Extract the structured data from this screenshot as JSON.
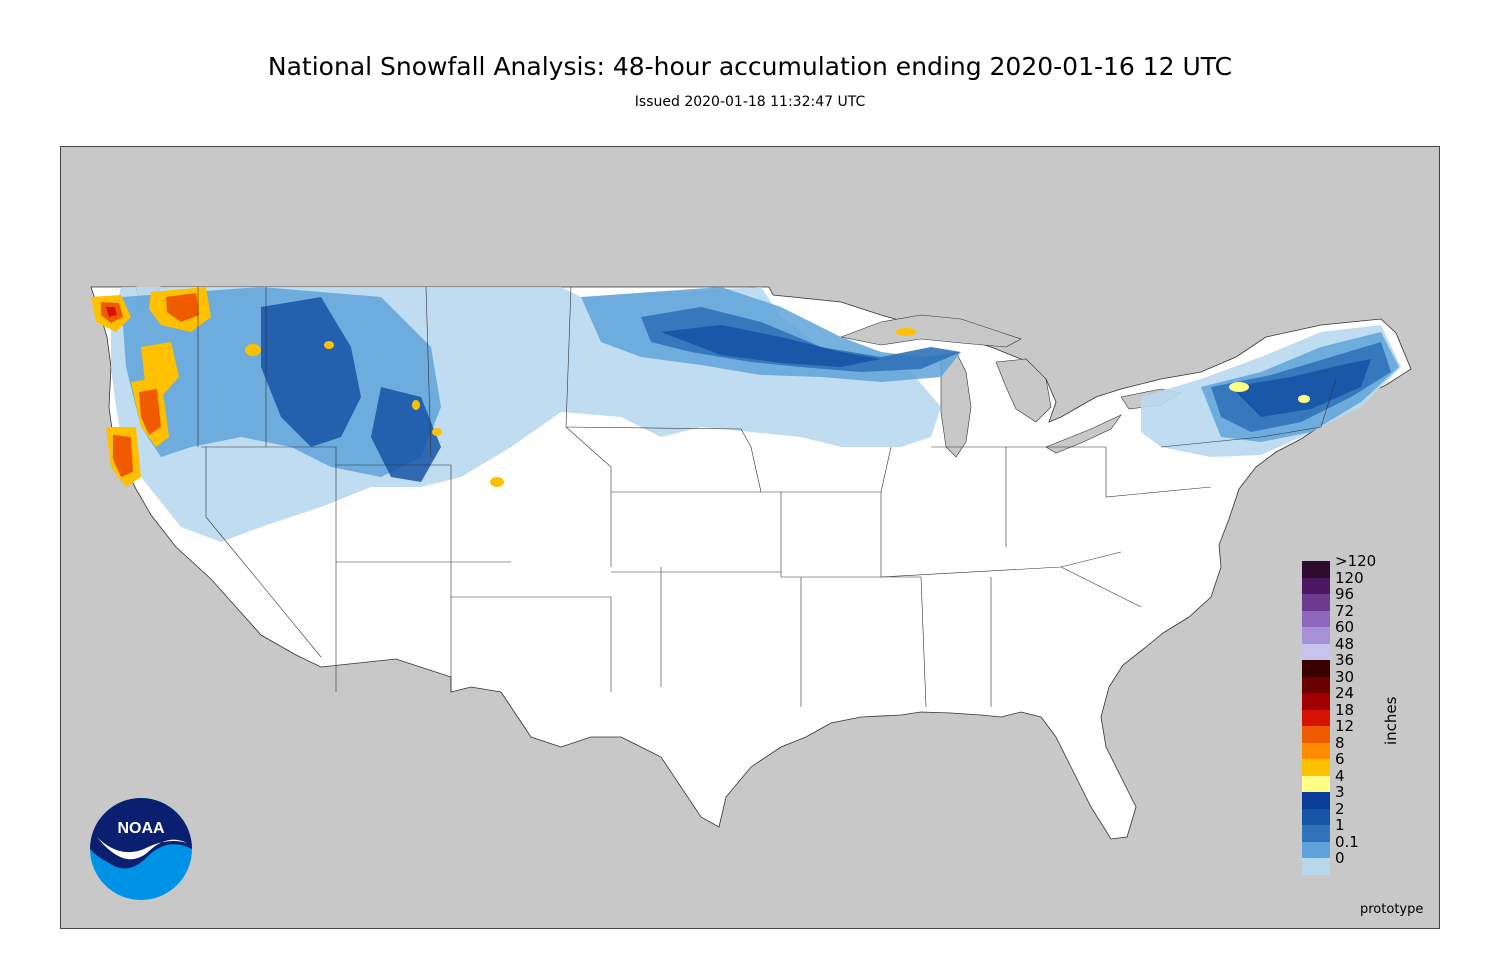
{
  "header": {
    "title": "National Snowfall Analysis: 48-hour accumulation ending 2020-01-16 12 UTC",
    "subtitle": "Issued 2020-01-18 11:32:47 UTC"
  },
  "legend": {
    "units": "inches",
    "items": [
      {
        "label": ">120",
        "color": "#2d0a2e"
      },
      {
        "label": "120",
        "color": "#4c1660"
      },
      {
        "label": "96",
        "color": "#6d3a8f"
      },
      {
        "label": "72",
        "color": "#8c66bd"
      },
      {
        "label": "60",
        "color": "#a691d6"
      },
      {
        "label": "48",
        "color": "#c8c2ef"
      },
      {
        "label": "36",
        "color": "#3a0000"
      },
      {
        "label": "30",
        "color": "#6a0000"
      },
      {
        "label": "24",
        "color": "#a10000"
      },
      {
        "label": "18",
        "color": "#d41400"
      },
      {
        "label": "12",
        "color": "#f05a00"
      },
      {
        "label": "8",
        "color": "#ff8c00"
      },
      {
        "label": "6",
        "color": "#ffc000"
      },
      {
        "label": "4",
        "color": "#ffff88"
      },
      {
        "label": "3",
        "color": "#0a3d96"
      },
      {
        "label": "2",
        "color": "#1654a6"
      },
      {
        "label": "1",
        "color": "#2f72b8"
      },
      {
        "label": "0.1",
        "color": "#5ea3d9"
      },
      {
        "label": "0",
        "color": "#b8d8ee"
      }
    ]
  },
  "note": "prototype",
  "logo": {
    "text": "NOAA"
  },
  "colors": {
    "land": "#ffffff",
    "water": "#c8c8c8",
    "boundary": "#333333"
  }
}
